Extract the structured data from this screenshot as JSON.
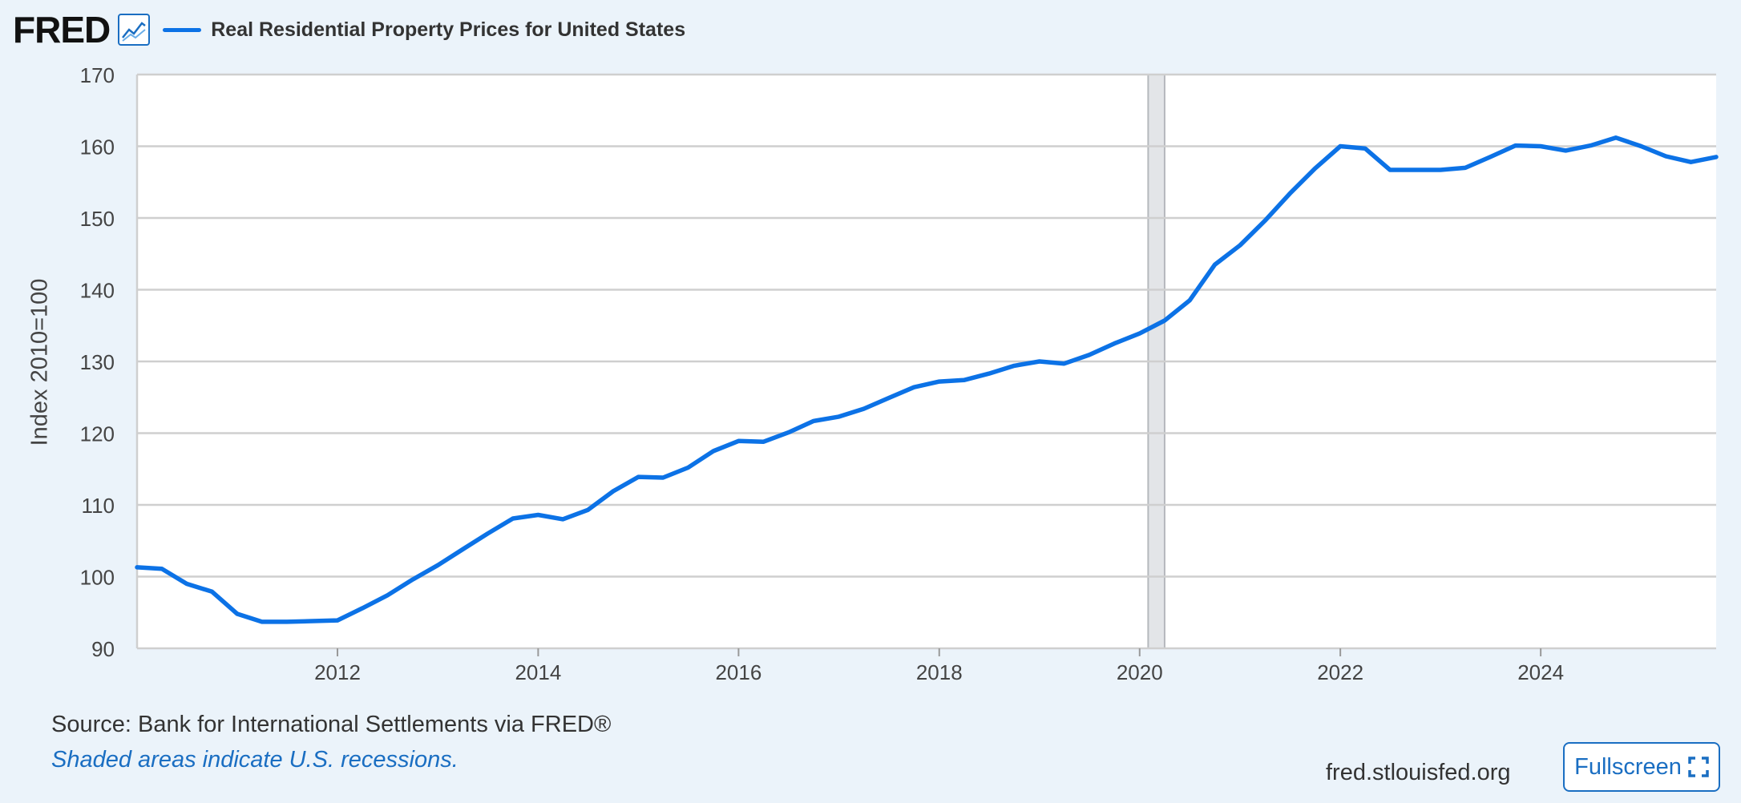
{
  "header": {
    "logo_text": "FRED",
    "legend_label": "Real Residential Property Prices for United States"
  },
  "footer": {
    "source": "Source: Bank for International Settlements via FRED®",
    "recession_note": "Shaded areas indicate U.S. recessions.",
    "site": "fred.stlouisfed.org",
    "fullscreen_label": "Fullscreen"
  },
  "colors": {
    "series": "#0c72e6",
    "background": "#ebf3fa",
    "recession": "#e3e5e8"
  },
  "chart_data": {
    "type": "line",
    "title": "Real Residential Property Prices for United States",
    "xlabel": "",
    "ylabel": "Index 2010=100",
    "ylim": [
      90,
      170
    ],
    "xlim": [
      "2010-01-01",
      "2025-10-01"
    ],
    "yticks": [
      90,
      100,
      110,
      120,
      130,
      140,
      150,
      160,
      170
    ],
    "xticks": [
      "2012",
      "2014",
      "2016",
      "2018",
      "2020",
      "2022",
      "2024"
    ],
    "grid": true,
    "legend_position": "top-left",
    "recessions": [
      {
        "start": "2020-02-01",
        "end": "2020-04-01"
      }
    ],
    "series": [
      {
        "name": "Real Residential Property Prices for United States",
        "x": [
          "2010-01-01",
          "2010-04-01",
          "2010-07-01",
          "2010-10-01",
          "2011-01-01",
          "2011-04-01",
          "2011-07-01",
          "2011-10-01",
          "2012-01-01",
          "2012-04-01",
          "2012-07-01",
          "2012-10-01",
          "2013-01-01",
          "2013-04-01",
          "2013-07-01",
          "2013-10-01",
          "2014-01-01",
          "2014-04-01",
          "2014-07-01",
          "2014-10-01",
          "2015-01-01",
          "2015-04-01",
          "2015-07-01",
          "2015-10-01",
          "2016-01-01",
          "2016-04-01",
          "2016-07-01",
          "2016-10-01",
          "2017-01-01",
          "2017-04-01",
          "2017-07-01",
          "2017-10-01",
          "2018-01-01",
          "2018-04-01",
          "2018-07-01",
          "2018-10-01",
          "2019-01-01",
          "2019-04-01",
          "2019-07-01",
          "2019-10-01",
          "2020-01-01",
          "2020-04-01",
          "2020-07-01",
          "2020-10-01",
          "2021-01-01",
          "2021-04-01",
          "2021-07-01",
          "2021-10-01",
          "2022-01-01",
          "2022-04-01",
          "2022-07-01",
          "2022-10-01",
          "2023-01-01",
          "2023-04-01",
          "2023-07-01",
          "2023-10-01",
          "2024-01-01",
          "2024-04-01",
          "2024-07-01",
          "2024-10-01",
          "2025-01-01",
          "2025-04-01",
          "2025-07-01",
          "2025-10-01"
        ],
        "y": [
          101.3,
          101.1,
          99.0,
          97.9,
          94.8,
          93.7,
          93.7,
          93.8,
          93.9,
          95.6,
          97.4,
          99.6,
          101.6,
          103.8,
          106.0,
          108.1,
          108.6,
          108.0,
          109.3,
          111.9,
          113.9,
          113.8,
          115.2,
          117.5,
          118.9,
          118.8,
          120.1,
          121.7,
          122.3,
          123.4,
          124.9,
          126.4,
          127.2,
          127.4,
          128.3,
          129.4,
          130.0,
          129.7,
          130.9,
          132.5,
          133.9,
          135.7,
          138.5,
          143.5,
          146.2,
          149.6,
          153.4,
          156.9,
          160.0,
          159.7,
          156.7,
          156.7,
          156.7,
          157.0,
          158.5,
          160.1,
          160.0,
          159.4,
          160.1,
          161.2,
          160.0,
          158.6,
          157.8,
          158.5
        ]
      }
    ]
  }
}
